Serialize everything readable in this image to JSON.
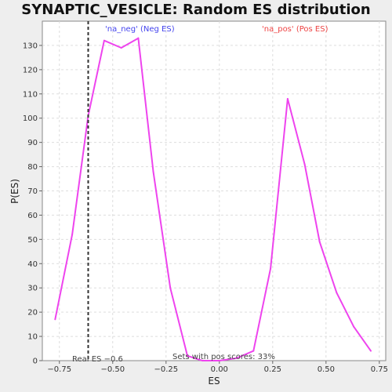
{
  "chart_data": {
    "type": "line",
    "title": "SYNAPTIC_VESICLE: Random ES distribution",
    "xlabel": "ES",
    "ylabel": "P(ES)",
    "xlim": [
      -0.83,
      0.78
    ],
    "ylim": [
      0,
      140
    ],
    "xticks": [
      -0.75,
      -0.5,
      -0.25,
      0.0,
      0.25,
      0.5,
      0.75
    ],
    "xtick_labels": [
      "−0.75",
      "−0.50",
      "−0.25",
      "0.00",
      "0.25",
      "0.50",
      "0.75"
    ],
    "yticks": [
      0,
      10,
      20,
      30,
      40,
      50,
      60,
      70,
      80,
      90,
      100,
      110,
      120,
      130
    ],
    "ytick_labels": [
      "0",
      "10",
      "20",
      "30",
      "40",
      "50",
      "60",
      "70",
      "80",
      "90",
      "100",
      "110",
      "120",
      "130"
    ],
    "grid": true,
    "legend": [
      {
        "label": "'na_neg' (Neg ES)",
        "color": "#4444ee"
      },
      {
        "label": "'na_pos' (Pos ES)",
        "color": "#ee4444"
      }
    ],
    "series": [
      {
        "color": "#ee44ee",
        "x": [
          -0.77,
          -0.69,
          -0.615,
          -0.54,
          -0.46,
          -0.38,
          -0.31,
          -0.23,
          -0.15,
          -0.08,
          0.0,
          0.08,
          0.16,
          0.24,
          0.32,
          0.4,
          0.47,
          0.55,
          0.63,
          0.71
        ],
        "y": [
          17,
          52,
          101,
          132,
          129,
          133,
          78,
          30,
          2,
          0,
          0,
          1,
          4,
          38,
          108,
          81,
          49,
          28,
          14,
          4
        ]
      }
    ],
    "reference_line": {
      "x": -0.615,
      "label": "Real ES −0.6",
      "color": "#333333"
    },
    "annotation": "Sets with pos scores: 33%"
  }
}
